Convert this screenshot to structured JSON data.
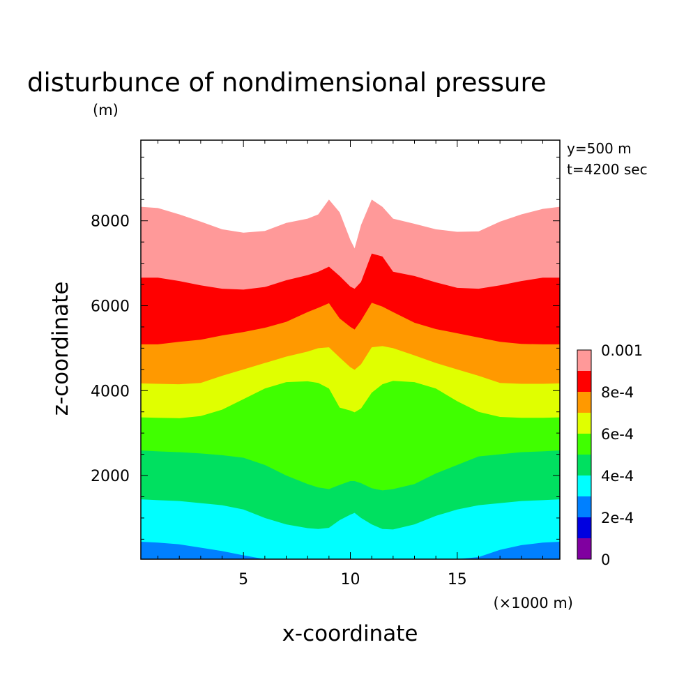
{
  "chart_data": {
    "type": "contour",
    "title": "disturbunce of nondimensional pressure",
    "ylabel": "z-coordinate",
    "yunit": "(m)",
    "xlabel": "x-coordinate",
    "xunit": "(×1000 m)",
    "annotations": [
      "y=500 m",
      "t=4200 sec"
    ],
    "xlim": [
      0.2,
      19.8
    ],
    "ylim": [
      30,
      9900
    ],
    "xticks": [
      5,
      10,
      15
    ],
    "xtick_labels": [
      "5",
      "10",
      "15"
    ],
    "yticks": [
      2000,
      4000,
      6000,
      8000
    ],
    "ytick_labels": [
      "2000",
      "4000",
      "6000",
      "8000"
    ],
    "legend": {
      "position": "right",
      "levels": [
        0,
        0.0001,
        0.0002,
        0.0003,
        0.0004,
        0.0005,
        0.0006,
        0.0007,
        0.0008,
        0.0009,
        0.001
      ],
      "labels": [
        "0",
        "2e-4",
        "4e-4",
        "6e-4",
        "8e-4",
        "0.001"
      ],
      "colors": [
        "#8000a0",
        "#0000e0",
        "#0080ff",
        "#00ffff",
        "#00e060",
        "#40ff00",
        "#e0ff00",
        "#ff9900",
        "#ff0000",
        "#ff9999"
      ]
    },
    "x": [
      0.2,
      1,
      2,
      3,
      4,
      5,
      6,
      7,
      8,
      8.5,
      9,
      9.5,
      10,
      10.2,
      10.5,
      11,
      11.5,
      12,
      13,
      14,
      15,
      16,
      17,
      18,
      19,
      19.8
    ],
    "contours": [
      {
        "level": 0.0003,
        "z": [
          440,
          420,
          380,
          300,
          220,
          120,
          30,
          30,
          30,
          30,
          30,
          30,
          30,
          30,
          30,
          30,
          30,
          30,
          30,
          30,
          30,
          80,
          250,
          360,
          420,
          440
        ]
      },
      {
        "level": 0.0004,
        "z": [
          1440,
          1420,
          1400,
          1350,
          1300,
          1200,
          1000,
          850,
          760,
          740,
          770,
          950,
          1080,
          1120,
          1000,
          850,
          740,
          730,
          850,
          1050,
          1200,
          1300,
          1350,
          1400,
          1420,
          1440
        ]
      },
      {
        "level": 0.0005,
        "z": [
          2590,
          2570,
          2550,
          2520,
          2480,
          2420,
          2250,
          2000,
          1800,
          1720,
          1680,
          1780,
          1870,
          1870,
          1820,
          1700,
          1650,
          1680,
          1800,
          2050,
          2250,
          2450,
          2500,
          2550,
          2570,
          2590
        ]
      },
      {
        "level": 0.0006,
        "z": [
          3370,
          3360,
          3350,
          3400,
          3550,
          3800,
          4050,
          4200,
          4220,
          4180,
          4050,
          3600,
          3530,
          3490,
          3580,
          3950,
          4150,
          4230,
          4200,
          4050,
          3750,
          3500,
          3380,
          3360,
          3360,
          3370
        ]
      },
      {
        "level": 0.0007,
        "z": [
          4170,
          4160,
          4150,
          4180,
          4350,
          4500,
          4650,
          4800,
          4920,
          5000,
          5020,
          4780,
          4550,
          4490,
          4620,
          5020,
          5050,
          5000,
          4830,
          4650,
          4500,
          4350,
          4180,
          4160,
          4160,
          4170
        ]
      },
      {
        "level": 0.0008,
        "z": [
          5090,
          5090,
          5150,
          5200,
          5300,
          5380,
          5480,
          5620,
          5850,
          5950,
          6060,
          5700,
          5500,
          5440,
          5650,
          6070,
          5980,
          5850,
          5600,
          5450,
          5350,
          5250,
          5150,
          5100,
          5090,
          5090
        ]
      },
      {
        "level": 0.0009,
        "z": [
          6660,
          6660,
          6580,
          6480,
          6400,
          6380,
          6440,
          6600,
          6720,
          6800,
          6920,
          6700,
          6450,
          6400,
          6560,
          7230,
          7160,
          6800,
          6700,
          6550,
          6420,
          6400,
          6480,
          6580,
          6660,
          6660
        ]
      },
      {
        "level": 0.001,
        "z": [
          8330,
          8300,
          8150,
          7980,
          7800,
          7720,
          7760,
          7950,
          8050,
          8150,
          8500,
          8200,
          7550,
          7350,
          7900,
          8500,
          8330,
          8050,
          7930,
          7800,
          7740,
          7750,
          7980,
          8150,
          8280,
          8330
        ]
      }
    ]
  }
}
